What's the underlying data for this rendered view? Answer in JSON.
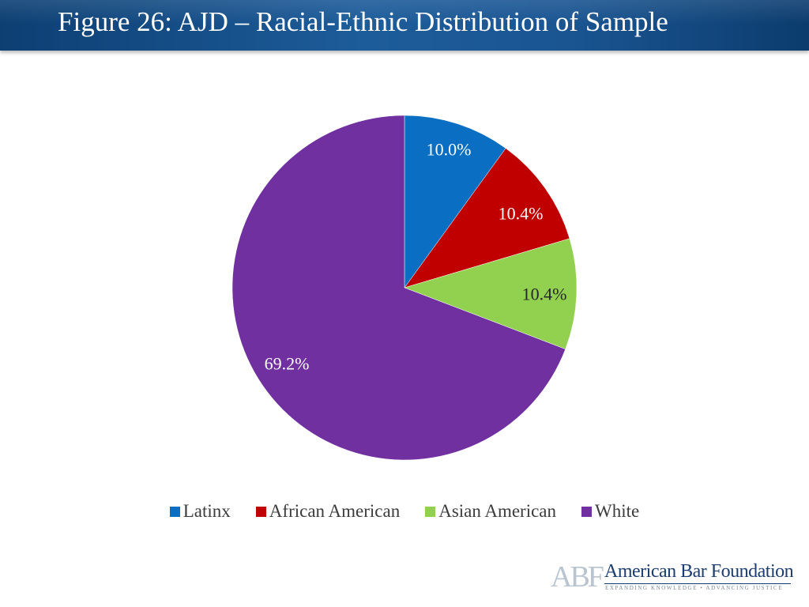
{
  "header": {
    "title": "Figure 26: AJD – Racial-Ethnic Distribution of Sample"
  },
  "chart_data": {
    "type": "pie",
    "title": "Figure 26: AJD – Racial-Ethnic Distribution of Sample",
    "categories": [
      "Latinx",
      "African American",
      "Asian American",
      "White"
    ],
    "values": [
      10.0,
      10.4,
      10.4,
      69.2
    ],
    "data_labels": [
      "10.0%",
      "10.4%",
      "10.4%",
      "69.2%"
    ],
    "colors": [
      "#0a6fc2",
      "#c00000",
      "#92d050",
      "#7030a0"
    ],
    "start_angle_deg": 0,
    "direction": "clockwise",
    "legend_position": "bottom"
  },
  "logo": {
    "mark": "ABF",
    "name": "American Bar Foundation",
    "tagline": "EXPANDING KNOWLEDGE • ADVANCING JUSTICE"
  }
}
